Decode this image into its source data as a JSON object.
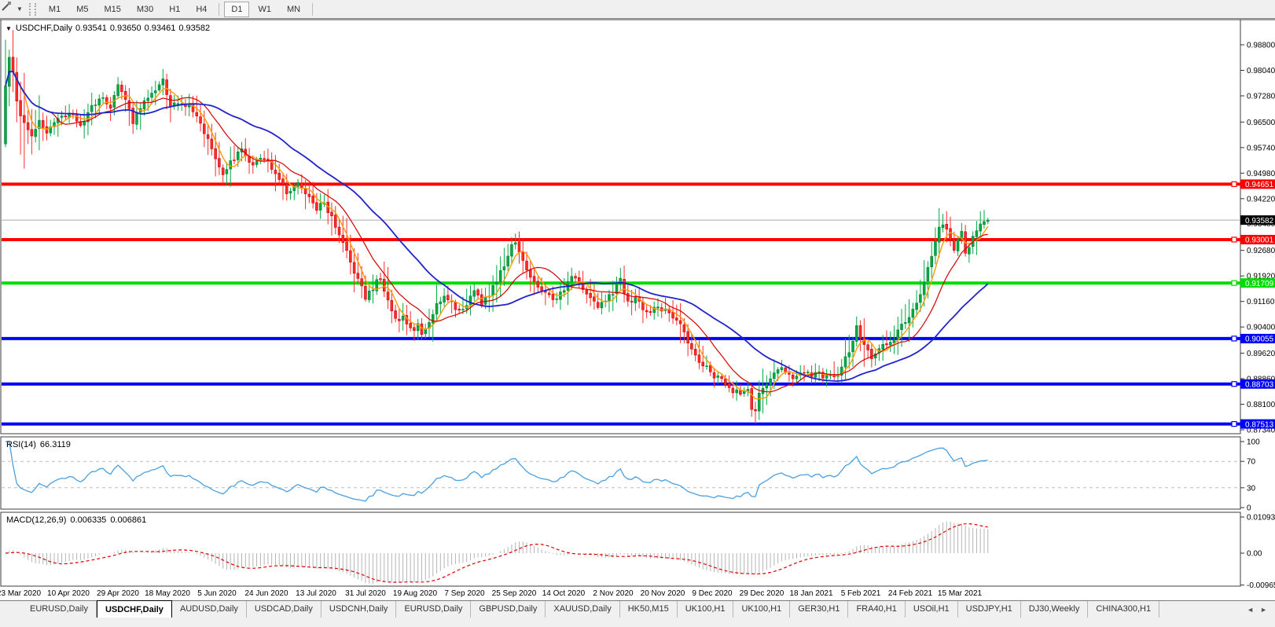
{
  "toolbar": {
    "timeframes": [
      "M1",
      "M5",
      "M15",
      "M30",
      "H1",
      "H4",
      "D1",
      "W1",
      "MN"
    ],
    "active": "D1"
  },
  "chart": {
    "title": "USDCHF,Daily",
    "ohlc": {
      "open": "0.93541",
      "high": "0.93650",
      "low": "0.93461",
      "close": "0.93582"
    },
    "axis_ticks": [
      "0.98800",
      "0.98040",
      "0.97280",
      "0.96500",
      "0.95740",
      "0.94980",
      "0.94220",
      "0.93480",
      "0.92680",
      "0.91920",
      "0.91160",
      "0.90400",
      "0.89620",
      "0.88860",
      "0.88100",
      "0.87340"
    ],
    "price_lines": [
      {
        "label": "0.94651",
        "price": 0.94651,
        "color": "#FF0000"
      },
      {
        "label": "0.93001",
        "price": 0.93001,
        "color": "#FF0000"
      },
      {
        "label": "0.91709",
        "price": 0.91709,
        "color": "#00DC00"
      },
      {
        "label": "0.90055",
        "price": 0.90055,
        "color": "#0000FF"
      },
      {
        "label": "0.88703",
        "price": 0.88703,
        "color": "#0000FF"
      },
      {
        "label": "0.87513",
        "price": 0.87513,
        "color": "#0000FF"
      }
    ],
    "current_price": {
      "label": "0.93582",
      "value": 0.93582
    },
    "colors": {
      "up_fill": "#00a943",
      "up_stroke": "#007a30",
      "down_fill": "#ff2a2a",
      "down_stroke": "#bb0000",
      "ma_fast": "#ff9c00",
      "ma_mid": "#d40000",
      "ma_slow": "#2222cc",
      "current_line": "#aaaaaa"
    }
  },
  "rsi_panel": {
    "label": "RSI(14)",
    "value": "66.3119",
    "axis_labels": [
      {
        "label": "100",
        "value": 100
      },
      {
        "label": "70",
        "value": 70
      },
      {
        "label": "30",
        "value": 30
      },
      {
        "label": "0",
        "value": 0
      }
    ],
    "dashed_levels": [
      70,
      30
    ],
    "line_color": "#4aa0e0"
  },
  "macd_panel": {
    "label": "MACD(12,26,9)",
    "main_value": "0.006335",
    "signal_value": "0.006861",
    "axis_labels": [
      {
        "label": "0.010933",
        "value": 0.010933
      },
      {
        "label": "0.00",
        "value": 0
      },
      {
        "label": "-0.009653",
        "value": -0.009653
      }
    ],
    "histogram_color": "#b4b4b4",
    "signal_color": "#e00000"
  },
  "tabs": {
    "items": [
      "EURUSD,Daily",
      "USDCHF,Daily",
      "AUDUSD,Daily",
      "USDCAD,Daily",
      "USDCNH,Daily",
      "EURUSD,Daily",
      "GBPUSD,Daily",
      "XAUUSD,Daily",
      "HK50,M15",
      "UK100,H1",
      "UK100,H1",
      "GER30,H1",
      "FRA40,H1",
      "USOil,H1",
      "USDJPY,H1",
      "DJ30,Weekly",
      "CHINA300,H1"
    ],
    "active_index": 1,
    "scroll_left": "◄",
    "scroll_right": "►"
  },
  "chart_data": {
    "type": "candlestick",
    "symbol": "USDCHF",
    "timeframe": "Daily",
    "title": "USDCHF,Daily",
    "last_ohlc": {
      "open": 0.93541,
      "high": 0.9365,
      "low": 0.93461,
      "close": 0.93582
    },
    "y_axis_range": [
      0.8734,
      0.988
    ],
    "x_labels": [
      "23 Mar 2020",
      "10 Apr 2020",
      "29 Apr 2020",
      "18 May 2020",
      "5 Jun 2020",
      "24 Jun 2020",
      "13 Jul 2020",
      "31 Jul 2020",
      "19 Aug 2020",
      "7 Sep 2020",
      "25 Sep 2020",
      "14 Oct 2020",
      "2 Nov 2020",
      "20 Nov 2020",
      "9 Dec 2020",
      "29 Dec 2020",
      "18 Jan 2021",
      "5 Feb 2021",
      "24 Feb 2021",
      "15 Mar 2021"
    ],
    "num_candles": 263,
    "close_anchors": [
      [
        0,
        0.976
      ],
      [
        1,
        0.985
      ],
      [
        2,
        0.98
      ],
      [
        3,
        0.9705
      ],
      [
        5,
        0.964
      ],
      [
        7,
        0.96
      ],
      [
        9,
        0.9658
      ],
      [
        11,
        0.9625
      ],
      [
        14,
        0.9652
      ],
      [
        17,
        0.9682
      ],
      [
        20,
        0.964
      ],
      [
        23,
        0.9698
      ],
      [
        26,
        0.9722
      ],
      [
        28,
        0.97
      ],
      [
        30,
        0.9758
      ],
      [
        32,
        0.9718
      ],
      [
        34,
        0.9652
      ],
      [
        37,
        0.9712
      ],
      [
        40,
        0.9738
      ],
      [
        42,
        0.9772
      ],
      [
        44,
        0.9692
      ],
      [
        47,
        0.9712
      ],
      [
        50,
        0.9688
      ],
      [
        52,
        0.9645
      ],
      [
        55,
        0.9568
      ],
      [
        58,
        0.9488
      ],
      [
        60,
        0.9528
      ],
      [
        63,
        0.9572
      ],
      [
        66,
        0.9515
      ],
      [
        69,
        0.9545
      ],
      [
        72,
        0.95
      ],
      [
        75,
        0.9442
      ],
      [
        78,
        0.9465
      ],
      [
        81,
        0.9432
      ],
      [
        83,
        0.9392
      ],
      [
        85,
        0.9412
      ],
      [
        88,
        0.9342
      ],
      [
        90,
        0.9292
      ],
      [
        92,
        0.9232
      ],
      [
        94,
        0.9182
      ],
      [
        96,
        0.913
      ],
      [
        98,
        0.9158
      ],
      [
        100,
        0.9188
      ],
      [
        102,
        0.9112
      ],
      [
        104,
        0.9062
      ],
      [
        106,
        0.9072
      ],
      [
        108,
        0.903
      ],
      [
        110,
        0.9045
      ],
      [
        111,
        0.9018
      ],
      [
        113,
        0.9055
      ],
      [
        115,
        0.9102
      ],
      [
        117,
        0.9132
      ],
      [
        119,
        0.9108
      ],
      [
        121,
        0.9085
      ],
      [
        123,
        0.9108
      ],
      [
        125,
        0.9148
      ],
      [
        127,
        0.911
      ],
      [
        129,
        0.914
      ],
      [
        131,
        0.9172
      ],
      [
        133,
        0.9228
      ],
      [
        135,
        0.9282
      ],
      [
        136,
        0.9298
      ],
      [
        138,
        0.9238
      ],
      [
        140,
        0.9188
      ],
      [
        142,
        0.9162
      ],
      [
        144,
        0.9145
      ],
      [
        146,
        0.9125
      ],
      [
        148,
        0.914
      ],
      [
        150,
        0.9172
      ],
      [
        152,
        0.9192
      ],
      [
        154,
        0.9158
      ],
      [
        156,
        0.9128
      ],
      [
        158,
        0.9105
      ],
      [
        160,
        0.912
      ],
      [
        162,
        0.9145
      ],
      [
        164,
        0.9182
      ],
      [
        166,
        0.9108
      ],
      [
        168,
        0.9122
      ],
      [
        170,
        0.9098
      ],
      [
        172,
        0.9082
      ],
      [
        174,
        0.9102
      ],
      [
        176,
        0.9088
      ],
      [
        178,
        0.9072
      ],
      [
        180,
        0.9048
      ],
      [
        182,
        0.8998
      ],
      [
        184,
        0.8958
      ],
      [
        186,
        0.8928
      ],
      [
        188,
        0.8903
      ],
      [
        190,
        0.8888
      ],
      [
        192,
        0.8868
      ],
      [
        194,
        0.8852
      ],
      [
        196,
        0.8848
      ],
      [
        198,
        0.8852
      ],
      [
        199,
        0.8798
      ],
      [
        200,
        0.8788
      ],
      [
        201,
        0.8838
      ],
      [
        203,
        0.8872
      ],
      [
        205,
        0.8898
      ],
      [
        207,
        0.8912
      ],
      [
        209,
        0.8898
      ],
      [
        211,
        0.8888
      ],
      [
        213,
        0.8908
      ],
      [
        215,
        0.8892
      ],
      [
        217,
        0.8905
      ],
      [
        219,
        0.8888
      ],
      [
        222,
        0.8905
      ],
      [
        224,
        0.8945
      ],
      [
        226,
        0.9
      ],
      [
        227,
        0.9035
      ],
      [
        229,
        0.899
      ],
      [
        231,
        0.894
      ],
      [
        233,
        0.897
      ],
      [
        235,
        0.899
      ],
      [
        237,
        0.9005
      ],
      [
        239,
        0.9045
      ],
      [
        241,
        0.9072
      ],
      [
        243,
        0.912
      ],
      [
        245,
        0.917
      ],
      [
        247,
        0.925
      ],
      [
        249,
        0.933
      ],
      [
        250,
        0.9352
      ],
      [
        251,
        0.9328
      ],
      [
        252,
        0.9292
      ],
      [
        253,
        0.9268
      ],
      [
        254,
        0.9302
      ],
      [
        255,
        0.9318
      ],
      [
        256,
        0.9262
      ],
      [
        257,
        0.9282
      ],
      [
        258,
        0.9305
      ],
      [
        259,
        0.932
      ],
      [
        260,
        0.9338
      ],
      [
        261,
        0.9352
      ],
      [
        262,
        0.93582
      ]
    ],
    "overrides": {
      "0": {
        "open": 0.9585,
        "high": 0.9895,
        "low": 0.9575
      },
      "58": {
        "low": 0.9462
      },
      "111": {
        "low": 0.9002
      },
      "136": {
        "high": 0.9318
      },
      "200": {
        "low": 0.8752
      },
      "250": {
        "high": 0.9377
      },
      "262": {
        "open": 0.93541,
        "high": 0.9365,
        "low": 0.93461,
        "close": 0.93582
      }
    },
    "moving_averages": [
      {
        "name": "fast",
        "period": 5
      },
      {
        "name": "mid",
        "period": 13
      },
      {
        "name": "slow",
        "period": 34
      }
    ],
    "indicators": {
      "rsi_period": 14,
      "macd": [
        12,
        26,
        9
      ]
    }
  }
}
